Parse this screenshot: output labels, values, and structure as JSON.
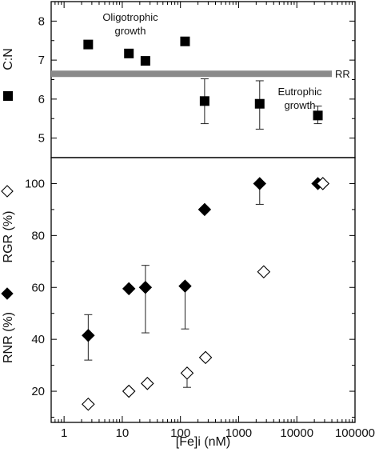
{
  "chart_data": [
    {
      "type": "scatter",
      "ylabel": "C:N",
      "ylim": [
        4.5,
        8.5
      ],
      "yticks": [
        5,
        6,
        7,
        8
      ],
      "xscale": "log",
      "xlim": [
        0.6,
        100000
      ],
      "marker": "filled-square",
      "series": [
        {
          "name": "C:N",
          "x": [
            2.6,
            13,
            25,
            120,
            260,
            2300,
            23000
          ],
          "y": [
            7.4,
            7.17,
            6.98,
            7.48,
            5.95,
            5.88,
            5.58
          ],
          "err_low": [
            null,
            null,
            null,
            null,
            5.37,
            5.23,
            5.37
          ],
          "err_high": [
            null,
            null,
            null,
            null,
            6.52,
            6.47,
            5.82
          ]
        }
      ],
      "reference_line": {
        "label": "RR",
        "y": 6.65,
        "color": "#8a8a8a"
      },
      "annotations": [
        {
          "lines": [
            "Oligotrophic",
            "growth"
          ]
        },
        {
          "lines": [
            "Eutrophic",
            "growth"
          ]
        }
      ]
    },
    {
      "type": "scatter",
      "ylabel_top": "RGR (%)",
      "ylabel_bottom": "RNR (%)",
      "ylim": [
        8,
        110
      ],
      "yticks": [
        20,
        40,
        60,
        80,
        100
      ],
      "xscale": "log",
      "xlim": [
        0.6,
        100000
      ],
      "xlabel": "[Fe]i (nM)",
      "xticks": [
        {
          "value": 1,
          "label": "1"
        },
        {
          "value": 10,
          "label": "10"
        },
        {
          "value": 100,
          "label": "100"
        },
        {
          "value": 1000,
          "label": "1000"
        },
        {
          "value": 10000,
          "label": "10000"
        },
        {
          "value": 100000,
          "label": "100000"
        }
      ],
      "series": [
        {
          "name": "RGR (%)",
          "marker": "open-diamond",
          "x": [
            2.6,
            13,
            27,
            130,
            270,
            2700,
            28000
          ],
          "y": [
            15,
            20,
            23,
            27,
            33,
            66,
            100
          ],
          "err_low": [
            null,
            null,
            null,
            21.5,
            null,
            null,
            null
          ],
          "err_high": [
            null,
            null,
            null,
            27,
            null,
            null,
            null
          ]
        },
        {
          "name": "RNR (%)",
          "marker": "filled-diamond",
          "x": [
            2.6,
            13,
            25,
            120,
            260,
            2300,
            23000
          ],
          "y": [
            41.5,
            59.5,
            60,
            60.5,
            90,
            100,
            100
          ],
          "err_low": [
            32,
            null,
            42.5,
            44,
            null,
            92,
            null
          ],
          "err_high": [
            49.5,
            null,
            68.5,
            61,
            98,
            100,
            100
          ]
        }
      ]
    }
  ]
}
